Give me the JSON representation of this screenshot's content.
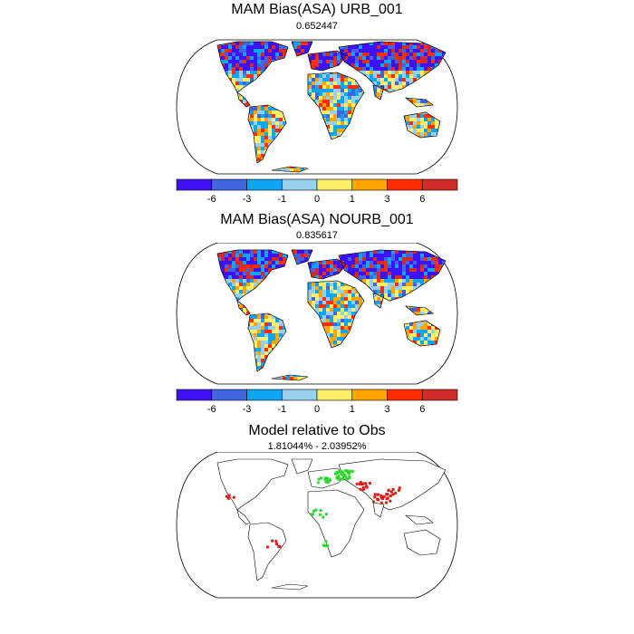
{
  "panels": [
    {
      "title": "MAM Bias(ASA) URB_001",
      "subtitle": "0.652447"
    },
    {
      "title": "MAM Bias(ASA) NOURB_001",
      "subtitle": "0.835617"
    },
    {
      "title": "Model relative to Obs",
      "subtitle": "1.81044% - 2.03952%"
    }
  ],
  "colorbar": {
    "colors": [
      "#3f12f5",
      "#4364e0",
      "#0ea5f5",
      "#97d0ee",
      "#ffef68",
      "#ffa400",
      "#ff2d00",
      "#d02a2a"
    ],
    "labels": [
      "-6",
      "-3",
      "-1",
      "0",
      "1",
      "3",
      "6"
    ]
  },
  "panel3_colors": {
    "positive": "#dd1c1c",
    "negative": "#2fd62f"
  }
}
